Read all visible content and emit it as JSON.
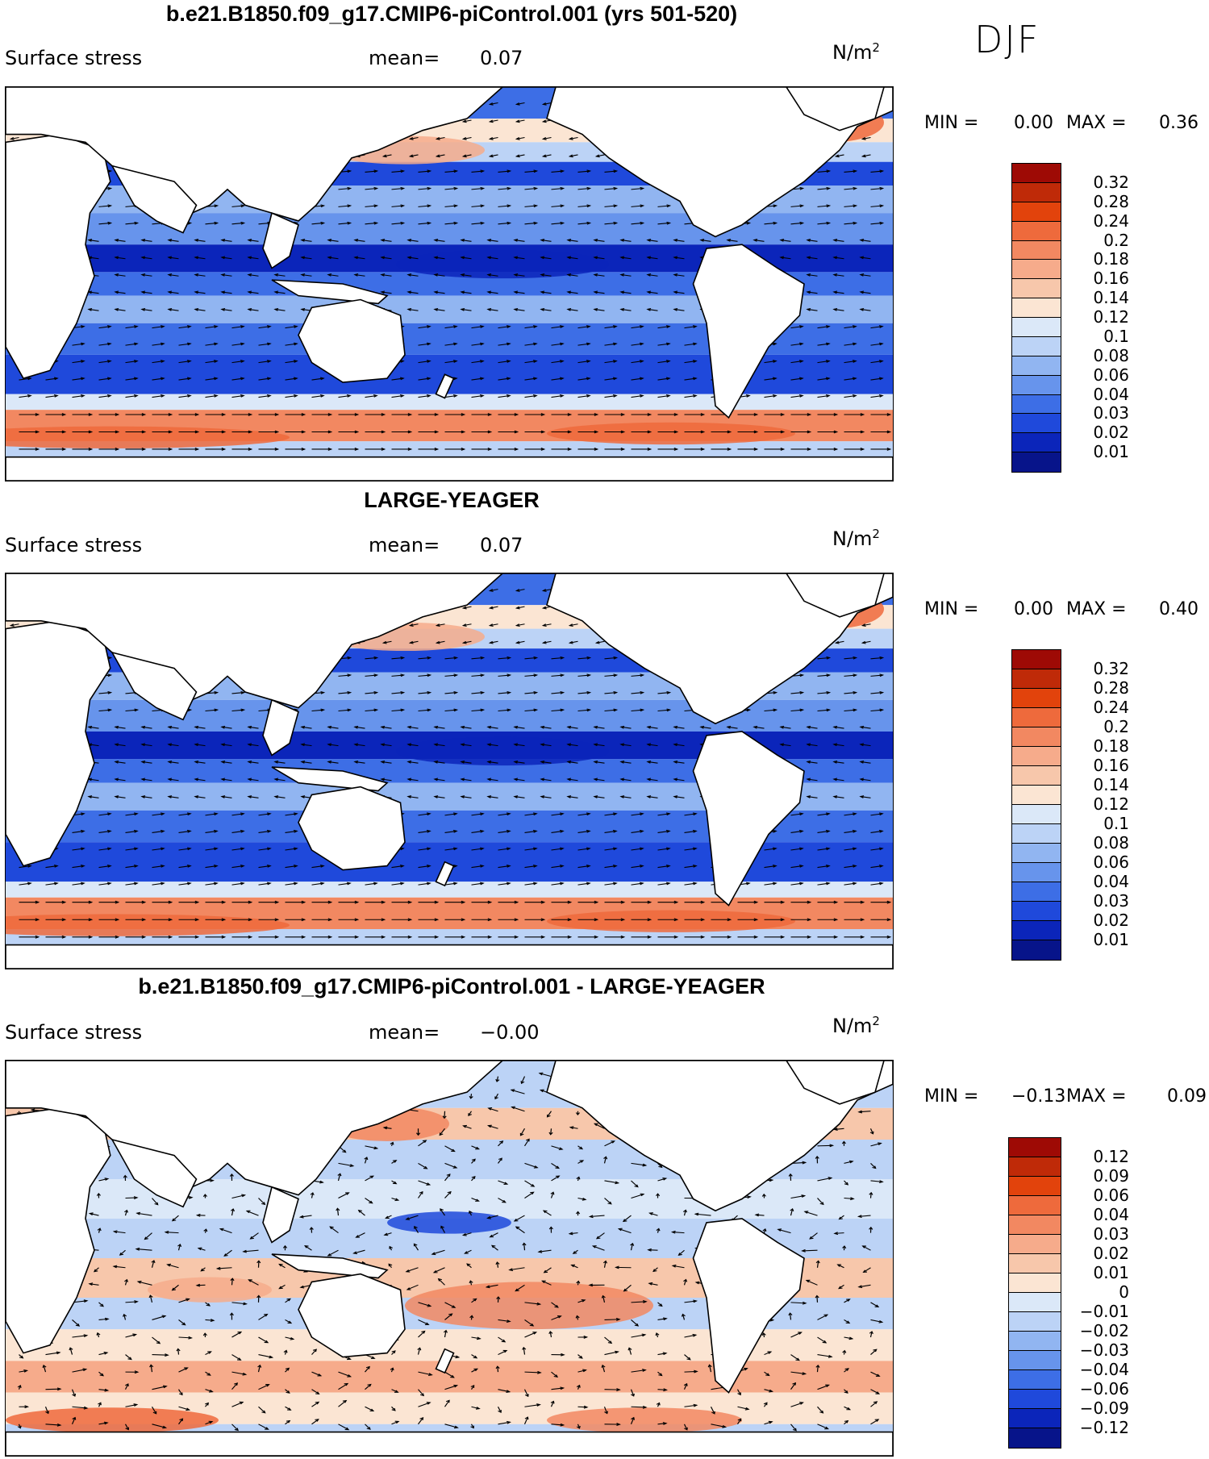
{
  "season": "DJF",
  "chart_data": [
    {
      "type": "heatmap",
      "title": "b.e21.B1850.f09_g17.CMIP6-piControl.001 (yrs 501-520)",
      "variable": "Surface stress",
      "mean_label": "mean=",
      "mean_value": "0.07",
      "units": "N/m",
      "units_exp": "2",
      "min_label": "MIN =",
      "min_value": "0.00",
      "max_label": "MAX =",
      "max_value": "0.36",
      "colorbar_labels": [
        "0.32",
        "0.28",
        "0.24",
        "0.2",
        "0.18",
        "0.16",
        "0.14",
        "0.12",
        "0.1",
        "0.08",
        "0.06",
        "0.04",
        "0.03",
        "0.02",
        "0.01"
      ],
      "colorbar_colors": [
        "#9e0a05",
        "#bf2a08",
        "#e2430c",
        "#ee6a3c",
        "#f28861",
        "#f6ab8b",
        "#f7c7ab",
        "#fbe5d3",
        "#dbe8f8",
        "#bcd3f6",
        "#91b5f1",
        "#6794ec",
        "#3d6ee6",
        "#1f49db",
        "#0b25ba",
        "#07148a"
      ]
    },
    {
      "type": "heatmap",
      "title": "LARGE-YEAGER",
      "variable": "Surface stress",
      "mean_label": "mean=",
      "mean_value": "0.07",
      "units": "N/m",
      "units_exp": "2",
      "min_label": "MIN =",
      "min_value": "0.00",
      "max_label": "MAX =",
      "max_value": "0.40",
      "colorbar_labels": [
        "0.32",
        "0.28",
        "0.24",
        "0.2",
        "0.18",
        "0.16",
        "0.14",
        "0.12",
        "0.1",
        "0.08",
        "0.06",
        "0.04",
        "0.03",
        "0.02",
        "0.01"
      ],
      "colorbar_colors": [
        "#9e0a05",
        "#bf2a08",
        "#e2430c",
        "#ee6a3c",
        "#f28861",
        "#f6ab8b",
        "#f7c7ab",
        "#fbe5d3",
        "#dbe8f8",
        "#bcd3f6",
        "#91b5f1",
        "#6794ec",
        "#3d6ee6",
        "#1f49db",
        "#0b25ba",
        "#07148a"
      ]
    },
    {
      "type": "heatmap",
      "title": "b.e21.B1850.f09_g17.CMIP6-piControl.001 - LARGE-YEAGER",
      "variable": "Surface stress",
      "mean_label": "mean=",
      "mean_value": "−0.00",
      "units": "N/m",
      "units_exp": "2",
      "min_label": "MIN =",
      "min_value": "−0.13",
      "max_label": "MAX =",
      "max_value": "0.09",
      "colorbar_labels": [
        "0.12",
        "0.09",
        "0.06",
        "0.04",
        "0.03",
        "0.02",
        "0.01",
        "0",
        "−0.01",
        "−0.02",
        "−0.03",
        "−0.04",
        "−0.06",
        "−0.09",
        "−0.12"
      ],
      "colorbar_colors": [
        "#9e0a05",
        "#bf2a08",
        "#e2430c",
        "#ee6a3c",
        "#f28861",
        "#f6ab8b",
        "#f7c7ab",
        "#fbe5d3",
        "#dbe8f8",
        "#bcd3f6",
        "#91b5f1",
        "#6794ec",
        "#3d6ee6",
        "#1f49db",
        "#0b25ba",
        "#07148a"
      ]
    }
  ]
}
